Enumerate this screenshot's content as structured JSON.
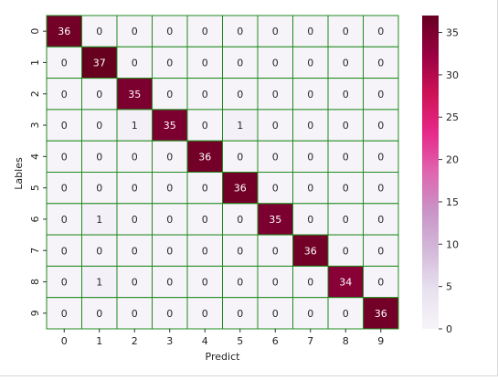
{
  "chart_data": {
    "type": "heatmap",
    "title": "",
    "xlabel": "Predict",
    "ylabel": "Lables",
    "x_categories": [
      "0",
      "1",
      "2",
      "3",
      "4",
      "5",
      "6",
      "7",
      "8",
      "9"
    ],
    "y_categories": [
      "0",
      "1",
      "2",
      "3",
      "4",
      "5",
      "6",
      "7",
      "8",
      "9"
    ],
    "matrix": [
      [
        36,
        0,
        0,
        0,
        0,
        0,
        0,
        0,
        0,
        0
      ],
      [
        0,
        37,
        0,
        0,
        0,
        0,
        0,
        0,
        0,
        0
      ],
      [
        0,
        0,
        35,
        0,
        0,
        0,
        0,
        0,
        0,
        0
      ],
      [
        0,
        0,
        1,
        35,
        0,
        1,
        0,
        0,
        0,
        0
      ],
      [
        0,
        0,
        0,
        0,
        36,
        0,
        0,
        0,
        0,
        0
      ],
      [
        0,
        0,
        0,
        0,
        0,
        36,
        0,
        0,
        0,
        0
      ],
      [
        0,
        1,
        0,
        0,
        0,
        0,
        35,
        0,
        0,
        0
      ],
      [
        0,
        0,
        0,
        0,
        0,
        0,
        0,
        36,
        0,
        0
      ],
      [
        0,
        1,
        0,
        0,
        0,
        0,
        0,
        0,
        34,
        0
      ],
      [
        0,
        0,
        0,
        0,
        0,
        0,
        0,
        0,
        0,
        36
      ]
    ],
    "colorbar": {
      "min": 0,
      "max": 37,
      "ticks": [
        0,
        5,
        10,
        15,
        20,
        25,
        30,
        35
      ],
      "colormap": "PuRd",
      "colors": [
        "#f7f4f9",
        "#e7e1ef",
        "#d4b9da",
        "#c994c7",
        "#df65b0",
        "#e7298a",
        "#ce1256",
        "#980043",
        "#67001f"
      ]
    },
    "grid_color": "#1f8a1f",
    "annotations": true
  }
}
